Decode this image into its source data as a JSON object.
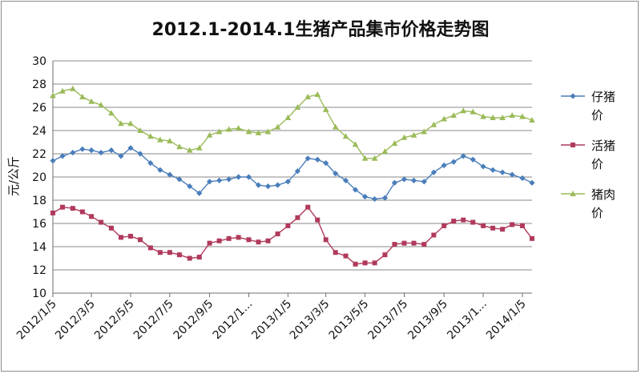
{
  "chart_data": {
    "type": "line",
    "title": "2012.1-2014.1生猪产品集市价格走势图",
    "ylabel": "元/公斤",
    "xlabel": "",
    "ylim": [
      10,
      30
    ],
    "yticks": [
      10,
      12,
      14,
      16,
      18,
      20,
      22,
      24,
      26,
      28,
      30
    ],
    "grid": true,
    "legend_position": "right",
    "x_tick_labels": [
      "2012/1/5",
      "2012/3/5",
      "2012/5/5",
      "2012/7/5",
      "2012/9/5",
      "2012/1...",
      "2013/1/5",
      "2013/3/5",
      "2013/5/5",
      "2013/7/5",
      "2013/9/5",
      "2013/1...",
      "2014/1/5"
    ],
    "x_tick_dates": [
      "2012-01-05",
      "2012-03-05",
      "2012-05-05",
      "2012-07-05",
      "2012-09-05",
      "2012-11-05",
      "2013-01-05",
      "2013-03-05",
      "2013-05-05",
      "2013-07-05",
      "2013-09-05",
      "2013-11-05",
      "2014-01-05"
    ],
    "x_end": "2014-01-20",
    "series": [
      {
        "name": "仔猪价",
        "legend_lines": [
          "仔猪",
          "价"
        ],
        "color": "#4a7ebb",
        "marker": "diamond",
        "x": [
          "2012-01-05",
          "2012-01-20",
          "2012-02-05",
          "2012-02-20",
          "2012-03-05",
          "2012-03-20",
          "2012-04-05",
          "2012-04-20",
          "2012-05-05",
          "2012-05-20",
          "2012-06-05",
          "2012-06-20",
          "2012-07-05",
          "2012-07-20",
          "2012-08-05",
          "2012-08-20",
          "2012-09-05",
          "2012-09-20",
          "2012-10-05",
          "2012-10-20",
          "2012-11-05",
          "2012-11-20",
          "2012-12-05",
          "2012-12-20",
          "2013-01-05",
          "2013-01-20",
          "2013-02-05",
          "2013-02-20",
          "2013-03-05",
          "2013-03-20",
          "2013-04-05",
          "2013-04-20",
          "2013-05-05",
          "2013-05-20",
          "2013-06-05",
          "2013-06-20",
          "2013-07-05",
          "2013-07-20",
          "2013-08-05",
          "2013-08-20",
          "2013-09-05",
          "2013-09-20",
          "2013-10-05",
          "2013-10-20",
          "2013-11-05",
          "2013-11-20",
          "2013-12-05",
          "2013-12-20",
          "2014-01-05",
          "2014-01-20"
        ],
        "y": [
          21.4,
          21.8,
          22.1,
          22.4,
          22.3,
          22.1,
          22.3,
          21.8,
          22.5,
          22.0,
          21.2,
          20.6,
          20.2,
          19.8,
          19.2,
          18.6,
          19.6,
          19.7,
          19.8,
          20.0,
          20.0,
          19.3,
          19.2,
          19.3,
          19.6,
          20.5,
          21.6,
          21.5,
          21.2,
          20.3,
          19.7,
          18.9,
          18.3,
          18.1,
          18.2,
          19.5,
          19.8,
          19.7,
          19.6,
          20.4,
          21.0,
          21.3,
          21.8,
          21.5,
          20.9,
          20.6,
          20.4,
          20.2,
          19.9,
          19.5
        ]
      },
      {
        "name": "活猪价",
        "legend_lines": [
          "活猪",
          "价"
        ],
        "color": "#b03a5b",
        "marker": "square",
        "x": [
          "2012-01-05",
          "2012-01-20",
          "2012-02-05",
          "2012-02-20",
          "2012-03-05",
          "2012-03-20",
          "2012-04-05",
          "2012-04-20",
          "2012-05-05",
          "2012-05-20",
          "2012-06-05",
          "2012-06-20",
          "2012-07-05",
          "2012-07-20",
          "2012-08-05",
          "2012-08-20",
          "2012-09-05",
          "2012-09-20",
          "2012-10-05",
          "2012-10-20",
          "2012-11-05",
          "2012-11-20",
          "2012-12-05",
          "2012-12-20",
          "2013-01-05",
          "2013-01-20",
          "2013-02-05",
          "2013-02-20",
          "2013-03-05",
          "2013-03-20",
          "2013-04-05",
          "2013-04-20",
          "2013-05-05",
          "2013-05-20",
          "2013-06-05",
          "2013-06-20",
          "2013-07-05",
          "2013-07-20",
          "2013-08-05",
          "2013-08-20",
          "2013-09-05",
          "2013-09-20",
          "2013-10-05",
          "2013-10-20",
          "2013-11-05",
          "2013-11-20",
          "2013-12-05",
          "2013-12-20",
          "2014-01-05",
          "2014-01-20"
        ],
        "y": [
          16.9,
          17.4,
          17.3,
          17.0,
          16.6,
          16.1,
          15.6,
          14.8,
          14.9,
          14.6,
          13.9,
          13.5,
          13.5,
          13.3,
          13.0,
          13.1,
          14.3,
          14.5,
          14.7,
          14.8,
          14.6,
          14.4,
          14.5,
          15.1,
          15.8,
          16.5,
          17.4,
          16.3,
          14.6,
          13.5,
          13.2,
          12.5,
          12.6,
          12.6,
          13.3,
          14.2,
          14.3,
          14.3,
          14.2,
          15.0,
          15.8,
          16.2,
          16.3,
          16.1,
          15.8,
          15.6,
          15.5,
          15.9,
          15.8,
          14.7
        ]
      },
      {
        "name": "猪肉价",
        "legend_lines": [
          "猪肉",
          "价"
        ],
        "color": "#9bbb59",
        "marker": "triangle",
        "x": [
          "2012-01-05",
          "2012-01-20",
          "2012-02-05",
          "2012-02-20",
          "2012-03-05",
          "2012-03-20",
          "2012-04-05",
          "2012-04-20",
          "2012-05-05",
          "2012-05-20",
          "2012-06-05",
          "2012-06-20",
          "2012-07-05",
          "2012-07-20",
          "2012-08-05",
          "2012-08-20",
          "2012-09-05",
          "2012-09-20",
          "2012-10-05",
          "2012-10-20",
          "2012-11-05",
          "2012-11-20",
          "2012-12-05",
          "2012-12-20",
          "2013-01-05",
          "2013-01-20",
          "2013-02-05",
          "2013-02-20",
          "2013-03-05",
          "2013-03-20",
          "2013-04-05",
          "2013-04-20",
          "2013-05-05",
          "2013-05-20",
          "2013-06-05",
          "2013-06-20",
          "2013-07-05",
          "2013-07-20",
          "2013-08-05",
          "2013-08-20",
          "2013-09-05",
          "2013-09-20",
          "2013-10-05",
          "2013-10-20",
          "2013-11-05",
          "2013-11-20",
          "2013-12-05",
          "2013-12-20",
          "2014-01-05",
          "2014-01-20"
        ],
        "y": [
          27.0,
          27.4,
          27.6,
          26.9,
          26.5,
          26.2,
          25.5,
          24.6,
          24.6,
          24.0,
          23.5,
          23.2,
          23.1,
          22.6,
          22.3,
          22.5,
          23.6,
          23.9,
          24.1,
          24.2,
          23.9,
          23.8,
          23.9,
          24.3,
          25.1,
          26.0,
          26.9,
          27.1,
          25.8,
          24.3,
          23.5,
          22.8,
          21.6,
          21.6,
          22.2,
          22.9,
          23.4,
          23.6,
          23.9,
          24.5,
          25.0,
          25.3,
          25.7,
          25.6,
          25.2,
          25.1,
          25.1,
          25.3,
          25.2,
          24.9
        ]
      }
    ]
  }
}
